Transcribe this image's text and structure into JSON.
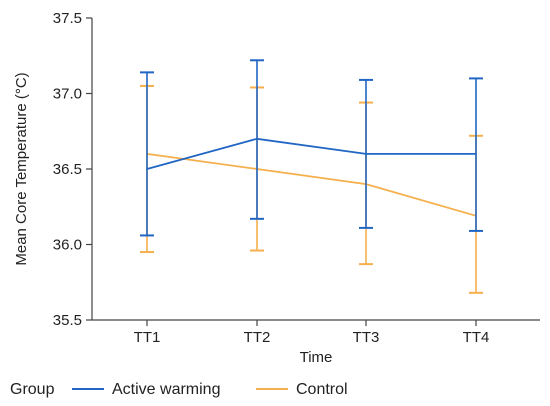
{
  "chart_data": {
    "type": "line",
    "xlabel": "Time",
    "ylabel": "Mean Core Temperature (°C)",
    "categories": [
      "TT1",
      "TT2",
      "TT3",
      "TT4"
    ],
    "ylim": [
      35.5,
      37.5
    ],
    "yticks": [
      "35.5",
      "36.0",
      "36.5",
      "37.0",
      "37.5"
    ],
    "grid": false,
    "legend": {
      "title": "Group",
      "placement": "bottom-left"
    },
    "series": [
      {
        "name": "Active warming",
        "color": "#2166c4",
        "values": [
          36.5,
          36.7,
          36.6,
          36.6
        ],
        "upper": [
          37.14,
          37.22,
          37.09,
          37.1
        ],
        "lower": [
          36.06,
          36.17,
          36.11,
          36.09
        ]
      },
      {
        "name": "Control",
        "color": "#f5b04d",
        "values": [
          36.6,
          36.5,
          36.4,
          36.19
        ],
        "upper": [
          37.05,
          37.04,
          36.94,
          36.72
        ],
        "lower": [
          35.95,
          35.96,
          35.87,
          35.68
        ]
      }
    ]
  }
}
